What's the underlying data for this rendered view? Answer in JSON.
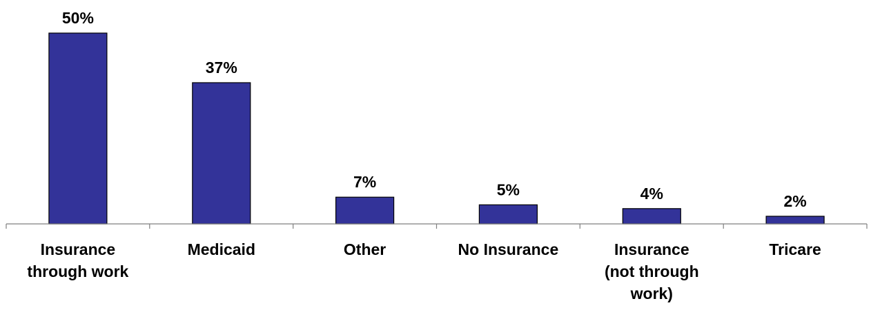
{
  "chart_data": {
    "type": "bar",
    "categories": [
      "Insurance through work",
      "Medicaid",
      "Other",
      "No Insurance",
      "Insurance (not through work)",
      "Tricare"
    ],
    "category_label_lines": [
      [
        "Insurance",
        "through work"
      ],
      [
        "Medicaid"
      ],
      [
        "Other"
      ],
      [
        "No Insurance"
      ],
      [
        "Insurance",
        "(not through",
        "work)"
      ],
      [
        "Tricare"
      ]
    ],
    "values": [
      50,
      37,
      7,
      5,
      4,
      2
    ],
    "value_labels": [
      "50%",
      "37%",
      "7%",
      "5%",
      "4%",
      "2%"
    ],
    "title": "",
    "xlabel": "",
    "ylabel": "",
    "ylim": [
      0,
      50
    ],
    "grid": false,
    "bar_color": "#333399"
  }
}
